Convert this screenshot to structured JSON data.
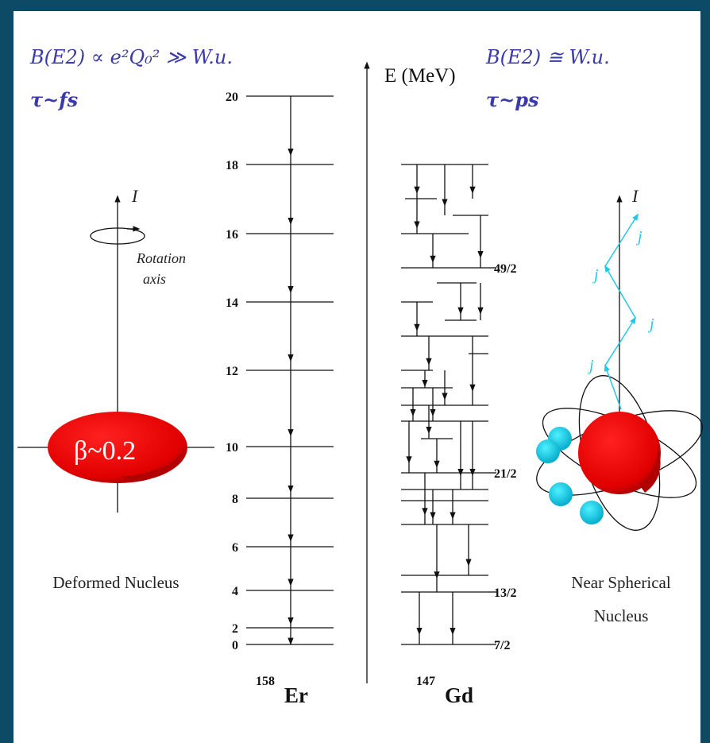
{
  "left": {
    "formula": "B(E2) ∝ e²Q₀² ≫ W.u.",
    "lifetime": "τ~fs",
    "spin_label": "I",
    "rotation_label": [
      "Rotation",
      "axis"
    ],
    "deformation": "β~0.2",
    "caption": "Deformed Nucleus"
  },
  "right": {
    "formula": "B(E2) ≅ W.u.",
    "lifetime": "τ~ps",
    "spin_label": "I",
    "j_labels": [
      "j",
      "j",
      "j",
      "j"
    ],
    "caption": [
      "Near Spherical",
      "Nucleus"
    ]
  },
  "energy_axis_label": "E (MeV)",
  "er": {
    "mass_number": "158",
    "element": "Er",
    "level_labels": [
      "20",
      "18",
      "16",
      "14",
      "12",
      "10",
      "8",
      "6",
      "4",
      "2",
      "0"
    ]
  },
  "gd": {
    "mass_number": "147",
    "element": "Gd",
    "level_labels": [
      "49/2",
      "21/2",
      "13/2",
      "7/2"
    ]
  }
}
